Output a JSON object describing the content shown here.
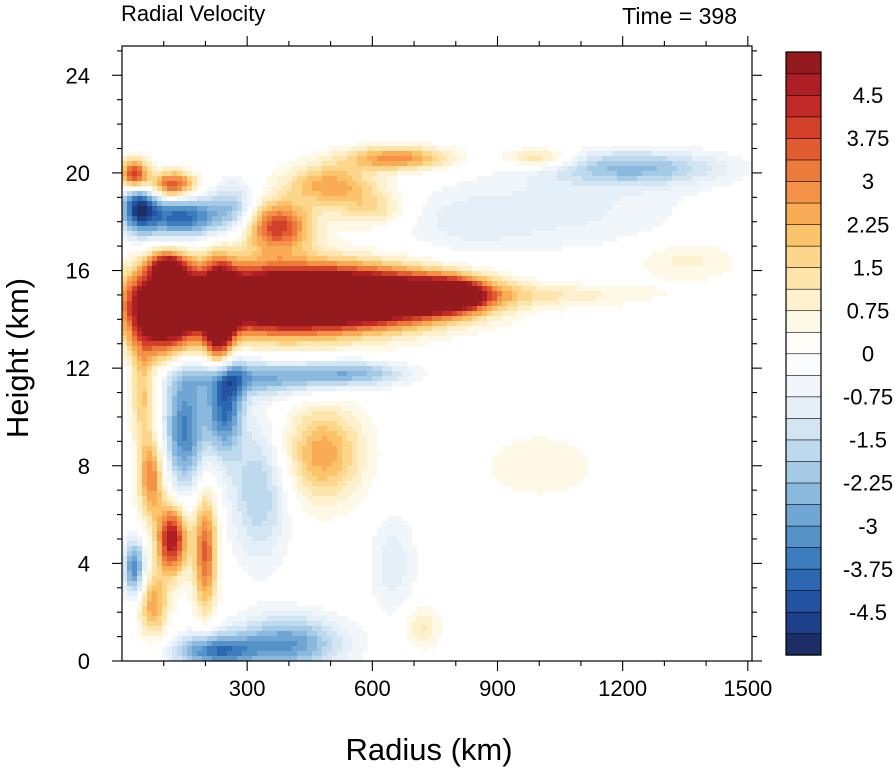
{
  "chart_data": {
    "type": "heatmap",
    "title": "Radial Velocity",
    "time_label": "Time = 398",
    "xlabel": "Radius (km)",
    "ylabel": "Height (km)",
    "xlim": [
      0,
      1510
    ],
    "ylim": [
      0,
      25.2
    ],
    "xticks": [
      300,
      600,
      900,
      1200,
      1500
    ],
    "yticks": [
      0,
      4,
      8,
      12,
      16,
      20,
      24
    ],
    "colorbar": {
      "min": -5.25,
      "max": 5.25,
      "step": 0.375,
      "labels": [
        "4.5",
        "3.75",
        "3",
        "2.25",
        "1.5",
        "0.75",
        "0",
        "-0.75",
        "-1.5",
        "-2.25",
        "-3",
        "-3.75",
        "-4.5"
      ],
      "label_values": [
        4.5,
        3.75,
        3,
        2.25,
        1.5,
        0.75,
        0,
        -0.75,
        -1.5,
        -2.25,
        -3,
        -3.75,
        -4.5
      ],
      "colors": [
        "#1b2f66",
        "#1e3f8a",
        "#2553a3",
        "#2e67b1",
        "#3d7dbd",
        "#5592c8",
        "#6fa6d3",
        "#8bb9dd",
        "#a5cae6",
        "#bdd9ee",
        "#d3e5f3",
        "#e4eff8",
        "#f1f6fb",
        "#fafcfe",
        "#fffdf7",
        "#fef8e6",
        "#fdf0cc",
        "#fde5ab",
        "#fcd68a",
        "#fbc36a",
        "#f9ac55",
        "#f49347",
        "#ec7a3b",
        "#e15c30",
        "#d3402a",
        "#c22a27",
        "#ad1f24",
        "#951a1d"
      ]
    },
    "features": [
      {
        "r": 370,
        "z": 14.8,
        "sr": 190,
        "sz": 1.0,
        "v": 7.5
      },
      {
        "r": 620,
        "z": 14.9,
        "sr": 160,
        "sz": 0.7,
        "v": 6.5
      },
      {
        "r": 790,
        "z": 15.0,
        "sr": 60,
        "sz": 0.45,
        "v": 4.5
      },
      {
        "r": 100,
        "z": 14.3,
        "sr": 60,
        "sz": 1.2,
        "v": 6.5
      },
      {
        "r": 235,
        "z": 13.8,
        "sr": 25,
        "sz": 1.6,
        "v": 6.0
      },
      {
        "r": 1000,
        "z": 15.0,
        "sr": 200,
        "sz": 0.35,
        "v": 1.0
      },
      {
        "r": 1350,
        "z": 16.4,
        "sr": 90,
        "sz": 0.6,
        "v": 0.9
      },
      {
        "r": 245,
        "z": 10.8,
        "sr": 30,
        "sz": 1.5,
        "v": -4.5
      },
      {
        "r": 340,
        "z": 11.6,
        "sr": 140,
        "sz": 0.5,
        "v": -2.5
      },
      {
        "r": 560,
        "z": 11.8,
        "sr": 90,
        "sz": 0.35,
        "v": -2.0
      },
      {
        "r": 150,
        "z": 9.5,
        "sr": 35,
        "sz": 1.8,
        "v": -3.5
      },
      {
        "r": 140,
        "z": 18.2,
        "sr": 70,
        "sz": 0.6,
        "v": -4.0
      },
      {
        "r": 40,
        "z": 18.7,
        "sr": 30,
        "sz": 0.8,
        "v": -4.0
      },
      {
        "r": 30,
        "z": 19.9,
        "sr": 25,
        "sz": 0.45,
        "v": 5.0
      },
      {
        "r": 120,
        "z": 19.5,
        "sr": 40,
        "sz": 0.4,
        "v": 4.0
      },
      {
        "r": 370,
        "z": 17.8,
        "sr": 60,
        "sz": 0.7,
        "v": 4.0
      },
      {
        "r": 500,
        "z": 19.5,
        "sr": 80,
        "sz": 0.6,
        "v": 2.5
      },
      {
        "r": 660,
        "z": 20.6,
        "sr": 90,
        "sz": 0.35,
        "v": 2.8
      },
      {
        "r": 1000,
        "z": 20.6,
        "sr": 60,
        "sz": 0.3,
        "v": 1.8
      },
      {
        "r": 1230,
        "z": 20.2,
        "sr": 150,
        "sz": 0.5,
        "v": -2.2
      },
      {
        "r": 600,
        "z": 18.5,
        "sr": 60,
        "sz": 0.5,
        "v": 1.5
      },
      {
        "r": 270,
        "z": 18.5,
        "sr": 40,
        "sz": 0.8,
        "v": -2.0
      },
      {
        "r": 820,
        "z": 18.0,
        "sr": 120,
        "sz": 1.0,
        "v": -0.8
      },
      {
        "r": 1100,
        "z": 18.5,
        "sr": 180,
        "sz": 1.2,
        "v": -0.8
      },
      {
        "r": 480,
        "z": 8.5,
        "sr": 70,
        "sz": 1.4,
        "v": 2.5
      },
      {
        "r": 330,
        "z": 7.0,
        "sr": 50,
        "sz": 2.0,
        "v": -2.0
      },
      {
        "r": 70,
        "z": 7.5,
        "sr": 22,
        "sz": 1.2,
        "v": 3.0
      },
      {
        "r": 120,
        "z": 5.0,
        "sr": 25,
        "sz": 1.0,
        "v": 5.0
      },
      {
        "r": 200,
        "z": 4.5,
        "sr": 20,
        "sz": 1.8,
        "v": 3.5
      },
      {
        "r": 30,
        "z": 3.8,
        "sr": 18,
        "sz": 0.8,
        "v": -3.5
      },
      {
        "r": 75,
        "z": 2.3,
        "sr": 25,
        "sz": 1.0,
        "v": 2.5
      },
      {
        "r": 400,
        "z": 0.7,
        "sr": 90,
        "sz": 0.8,
        "v": -3.0
      },
      {
        "r": 220,
        "z": 0.4,
        "sr": 70,
        "sz": 0.5,
        "v": -3.5
      },
      {
        "r": 650,
        "z": 4.0,
        "sr": 40,
        "sz": 1.5,
        "v": -1.0
      },
      {
        "r": 720,
        "z": 1.4,
        "sr": 30,
        "sz": 0.6,
        "v": 1.2
      },
      {
        "r": 1000,
        "z": 8.0,
        "sr": 150,
        "sz": 1.5,
        "v": 0.5
      },
      {
        "r": 50,
        "z": 11.0,
        "sr": 20,
        "sz": 1.5,
        "v": 2.0
      },
      {
        "r": 110,
        "z": 16.2,
        "sr": 30,
        "sz": 0.4,
        "v": 3.5
      }
    ]
  }
}
